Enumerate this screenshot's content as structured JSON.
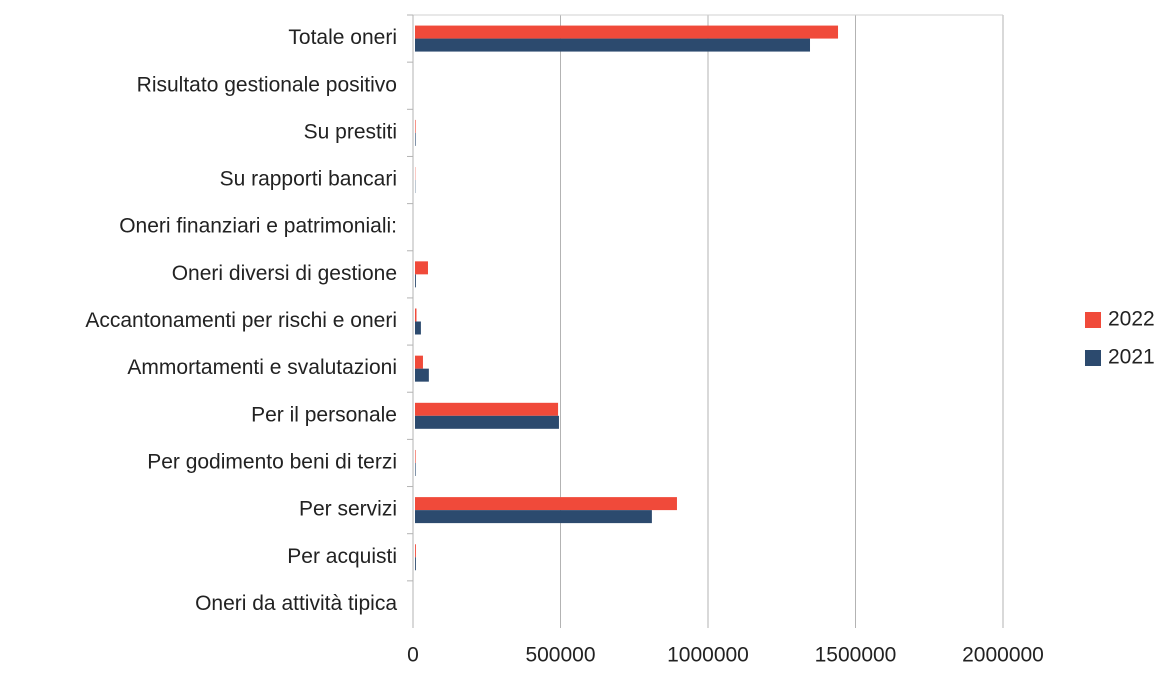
{
  "chart_data": {
    "type": "hbar",
    "categories": [
      "Totale oneri",
      "Risultato gestionale positivo",
      "Su prestiti",
      "Su rapporti bancari",
      "Oneri finanziari e patrimoniali:",
      "Oneri diversi di gestione",
      "Accantonamenti per rischi e oneri",
      "Ammortamenti e svalutazioni",
      "Per il personale",
      "Per godimento beni di terzi",
      "Per servizi",
      "Per acquisti",
      "Oneri da attività tipica"
    ],
    "series": [
      {
        "name": "2022",
        "color": "#f04a3a",
        "values": [
          1434000,
          0,
          2000,
          1000,
          0,
          44000,
          5000,
          27000,
          485000,
          2000,
          888000,
          3000,
          0
        ]
      },
      {
        "name": "2021",
        "color": "#2c4a6e",
        "values": [
          1339000,
          0,
          2000,
          1000,
          0,
          3000,
          20000,
          47000,
          488000,
          2000,
          803000,
          3000,
          0
        ]
      }
    ],
    "xlim": [
      0,
      2000000
    ],
    "xticks": [
      0,
      500000,
      1000000,
      1500000,
      2000000
    ],
    "grid": true,
    "legend": "right"
  }
}
